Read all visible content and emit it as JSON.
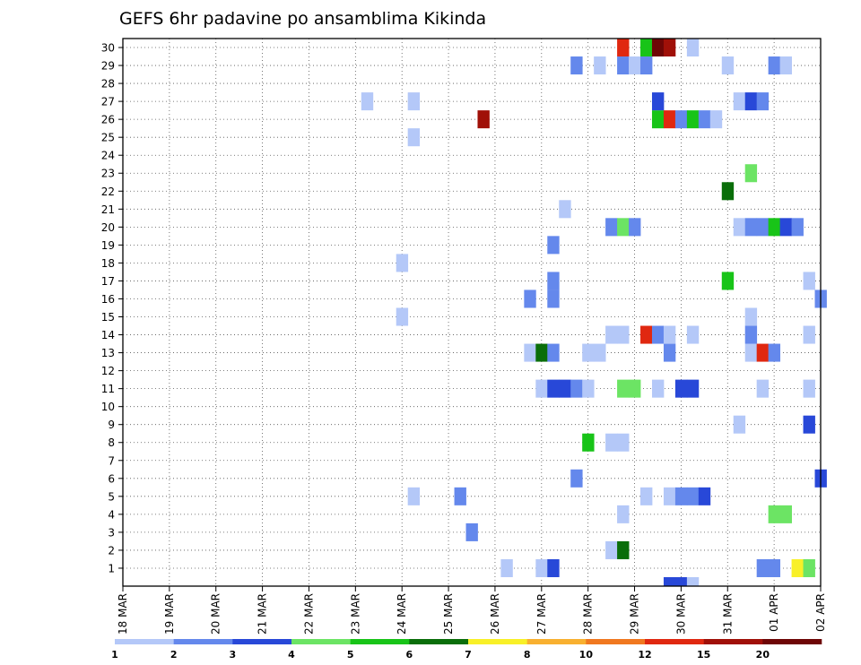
{
  "chart_data": {
    "type": "heatmap",
    "title": "GEFS 6hr padavine po ansamblima Kikinda",
    "xlabel": "",
    "ylabel": "",
    "y_ticks": [
      "1",
      "2",
      "3",
      "4",
      "5",
      "6",
      "7",
      "8",
      "9",
      "10",
      "11",
      "12",
      "13",
      "14",
      "15",
      "16",
      "17",
      "18",
      "19",
      "20",
      "21",
      "22",
      "23",
      "24",
      "25",
      "26",
      "27",
      "28",
      "29",
      "30"
    ],
    "ylim": [
      0,
      30
    ],
    "x_ticks": [
      "18 MAR",
      "19 MAR",
      "20 MAR",
      "21 MAR",
      "22 MAR",
      "23 MAR",
      "24 MAR",
      "25 MAR",
      "26 MAR",
      "27 MAR",
      "28 MAR",
      "29 MAR",
      "30 MAR",
      "31 MAR",
      "01 APR",
      "02 APR"
    ],
    "x_range_steps": [
      0,
      60
    ],
    "steps_per_day": 4,
    "legend": {
      "labels": [
        "1",
        "2",
        "3",
        "4",
        "5",
        "6",
        "7",
        "8",
        "10",
        "12",
        "15",
        "20"
      ],
      "colors": [
        "#b4c8f8",
        "#6488ec",
        "#2848d8",
        "#6ce464",
        "#18c418",
        "#0a6e0a",
        "#f8f028",
        "#f8b030",
        "#f07820",
        "#e02810",
        "#a01008",
        "#6e0606"
      ]
    },
    "cells": [
      [
        1,
        33,
        0
      ],
      [
        1,
        36,
        0
      ],
      [
        1,
        37,
        2
      ],
      [
        1,
        55,
        1
      ],
      [
        1,
        56,
        1
      ],
      [
        1,
        58,
        6
      ],
      [
        1,
        59,
        3
      ],
      [
        2,
        42,
        0
      ],
      [
        2,
        43,
        5
      ],
      [
        3,
        30,
        1
      ],
      [
        4,
        43,
        0
      ],
      [
        4,
        56,
        3
      ],
      [
        4,
        57,
        3
      ],
      [
        5,
        25,
        0
      ],
      [
        5,
        29,
        1
      ],
      [
        5,
        45,
        0
      ],
      [
        5,
        47,
        0
      ],
      [
        5,
        48,
        1
      ],
      [
        5,
        49,
        1
      ],
      [
        5,
        50,
        2
      ],
      [
        6,
        39,
        1
      ],
      [
        6,
        60,
        2
      ],
      [
        8,
        40,
        4
      ],
      [
        8,
        42,
        0
      ],
      [
        8,
        43,
        0
      ],
      [
        9,
        53,
        0
      ],
      [
        9,
        59,
        2
      ],
      [
        11,
        36,
        0
      ],
      [
        11,
        37,
        2
      ],
      [
        11,
        38,
        2
      ],
      [
        11,
        39,
        1
      ],
      [
        11,
        40,
        0
      ],
      [
        11,
        43,
        3
      ],
      [
        11,
        44,
        3
      ],
      [
        11,
        46,
        0
      ],
      [
        11,
        48,
        2
      ],
      [
        11,
        49,
        2
      ],
      [
        11,
        55,
        0
      ],
      [
        11,
        59,
        0
      ],
      [
        13,
        35,
        0
      ],
      [
        13,
        36,
        5
      ],
      [
        13,
        37,
        1
      ],
      [
        13,
        40,
        0
      ],
      [
        13,
        41,
        0
      ],
      [
        13,
        47,
        1
      ],
      [
        13,
        54,
        0
      ],
      [
        13,
        55,
        9
      ],
      [
        13,
        56,
        1
      ],
      [
        14,
        42,
        0
      ],
      [
        14,
        43,
        0
      ],
      [
        14,
        45,
        9
      ],
      [
        14,
        46,
        1
      ],
      [
        14,
        47,
        0
      ],
      [
        14,
        49,
        0
      ],
      [
        14,
        54,
        1
      ],
      [
        14,
        59,
        0
      ],
      [
        15,
        24,
        0
      ],
      [
        15,
        54,
        0
      ],
      [
        16,
        35,
        1
      ],
      [
        16,
        37,
        1
      ],
      [
        16,
        60,
        1
      ],
      [
        17,
        37,
        1
      ],
      [
        17,
        52,
        4
      ],
      [
        17,
        59,
        0
      ],
      [
        18,
        24,
        0
      ],
      [
        19,
        37,
        1
      ],
      [
        20,
        42,
        1
      ],
      [
        20,
        43,
        3
      ],
      [
        20,
        44,
        1
      ],
      [
        20,
        53,
        0
      ],
      [
        20,
        54,
        1
      ],
      [
        20,
        55,
        1
      ],
      [
        20,
        56,
        4
      ],
      [
        20,
        57,
        2
      ],
      [
        20,
        58,
        1
      ],
      [
        21,
        38,
        0
      ],
      [
        22,
        52,
        5
      ],
      [
        23,
        54,
        3
      ],
      [
        25,
        25,
        0
      ],
      [
        26,
        31,
        10
      ],
      [
        26,
        46,
        4
      ],
      [
        26,
        47,
        9
      ],
      [
        26,
        48,
        1
      ],
      [
        26,
        49,
        4
      ],
      [
        26,
        50,
        1
      ],
      [
        26,
        51,
        0
      ],
      [
        27,
        21,
        0
      ],
      [
        27,
        25,
        0
      ],
      [
        27,
        46,
        2
      ],
      [
        27,
        53,
        0
      ],
      [
        27,
        54,
        2
      ],
      [
        27,
        55,
        1
      ],
      [
        29,
        39,
        1
      ],
      [
        29,
        41,
        0
      ],
      [
        29,
        43,
        1
      ],
      [
        29,
        44,
        0
      ],
      [
        29,
        45,
        1
      ],
      [
        29,
        52,
        0
      ],
      [
        29,
        56,
        1
      ],
      [
        29,
        57,
        0
      ],
      [
        30,
        43,
        9
      ],
      [
        30,
        45,
        4
      ],
      [
        30,
        46,
        11
      ],
      [
        30,
        47,
        10
      ],
      [
        30,
        49,
        0
      ],
      [
        0,
        47,
        2
      ],
      [
        0,
        48,
        2
      ],
      [
        0,
        49,
        0
      ]
    ]
  }
}
